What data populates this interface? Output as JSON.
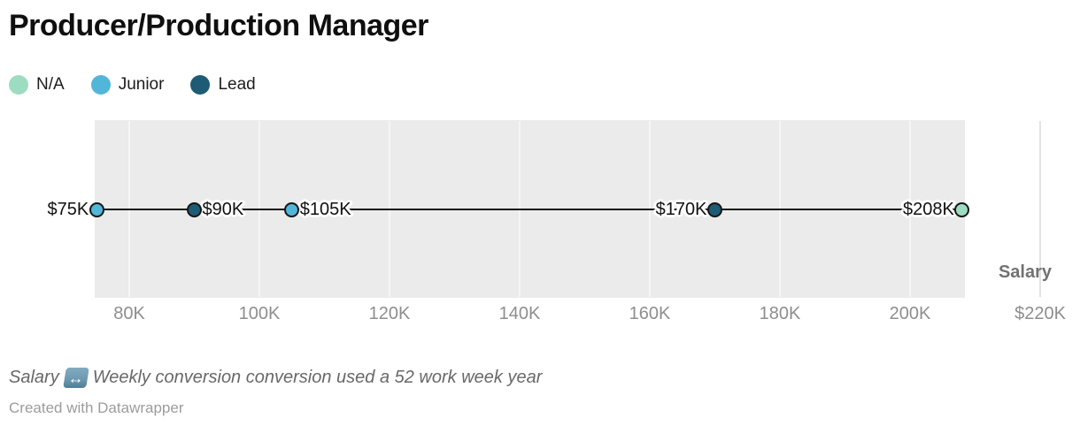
{
  "header": {
    "title": "Producer/Production Manager"
  },
  "legend": {
    "items": [
      {
        "label": "N/A",
        "color": "#9edcc1"
      },
      {
        "label": "Junior",
        "color": "#52b6d9"
      },
      {
        "label": "Lead",
        "color": "#1e5b74"
      }
    ]
  },
  "chart_data": {
    "type": "scatter",
    "title": "Producer/Production Manager",
    "xlabel": "Salary",
    "ylabel": "",
    "xlim": [
      74800,
      220000
    ],
    "grid": true,
    "legend_position": "top",
    "x_ticks": [
      {
        "value": 80000,
        "label": "80K"
      },
      {
        "value": 100000,
        "label": "100K"
      },
      {
        "value": 120000,
        "label": "120K"
      },
      {
        "value": 140000,
        "label": "140K"
      },
      {
        "value": 160000,
        "label": "160K"
      },
      {
        "value": 180000,
        "label": "180K"
      },
      {
        "value": 200000,
        "label": "200K"
      },
      {
        "value": 220000,
        "label": "$220K"
      }
    ],
    "points": [
      {
        "value": 75000,
        "label": "$75K",
        "series": "Junior",
        "label_side": "left"
      },
      {
        "value": 90000,
        "label": "$90K",
        "series": "Lead",
        "label_side": "right"
      },
      {
        "value": 105000,
        "label": "$105K",
        "series": "Junior",
        "label_side": "right"
      },
      {
        "value": 170000,
        "label": "$170K",
        "series": "Lead",
        "label_side": "left"
      },
      {
        "value": 208000,
        "label": "$208K",
        "series": "N/A",
        "label_side": "left"
      }
    ],
    "series_colors": {
      "N/A": "#9edcc1",
      "Junior": "#52b6d9",
      "Lead": "#1e5b74"
    }
  },
  "axis": {
    "title": "Salary"
  },
  "footer": {
    "note_prefix": "Salary",
    "note_emoji": "↔",
    "note_suffix": "Weekly conversion conversion used a 52 work week year",
    "credit": "Created with Datawrapper"
  }
}
